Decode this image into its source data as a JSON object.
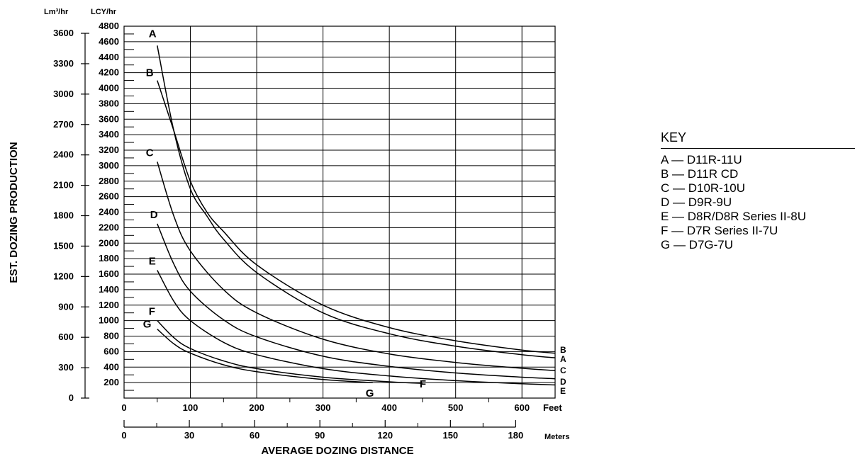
{
  "chart_data": {
    "type": "line",
    "xlabel": "AVERAGE DOZING DISTANCE",
    "ylabel": "EST. DOZING PRODUCTION",
    "x_units": {
      "primary": "Feet",
      "secondary": "Meters"
    },
    "y_units": {
      "primary": "LCY/hr",
      "secondary": "Lm³/hr"
    },
    "xlim": [
      0,
      650
    ],
    "ylim": [
      0,
      4800
    ],
    "x_ticks_feet": [
      "0",
      "100",
      "200",
      "300",
      "400",
      "500",
      "600"
    ],
    "x_ticks_meters": [
      "0",
      "30",
      "60",
      "90",
      "120",
      "150",
      "180"
    ],
    "y_ticks_lcy": [
      "200",
      "400",
      "600",
      "800",
      "1000",
      "1200",
      "1400",
      "1600",
      "1800",
      "2000",
      "2200",
      "2400",
      "2600",
      "2800",
      "3000",
      "3200",
      "3400",
      "3600",
      "3800",
      "4000",
      "4200",
      "4400",
      "4600",
      "4800"
    ],
    "y_ticks_lm3": [
      "0",
      "300",
      "600",
      "900",
      "1200",
      "1500",
      "1800",
      "2100",
      "2400",
      "2700",
      "3000",
      "3300",
      "3600"
    ],
    "grid": true,
    "series": [
      {
        "name": "A",
        "x": [
          50,
          75,
          100,
          125,
          150,
          200,
          300,
          400,
          500,
          600,
          650
        ],
        "y": [
          4550,
          3450,
          2700,
          2350,
          2050,
          1620,
          1100,
          830,
          670,
          560,
          520
        ]
      },
      {
        "name": "B",
        "x": [
          50,
          75,
          100,
          125,
          150,
          200,
          300,
          400,
          500,
          600,
          650
        ],
        "y": [
          4100,
          3450,
          2800,
          2400,
          2150,
          1720,
          1200,
          910,
          740,
          620,
          580
        ]
      },
      {
        "name": "C",
        "x": [
          50,
          75,
          100,
          150,
          200,
          300,
          400,
          500,
          600,
          650
        ],
        "y": [
          3050,
          2350,
          1900,
          1400,
          1100,
          760,
          570,
          460,
          385,
          355
        ]
      },
      {
        "name": "D",
        "x": [
          50,
          75,
          100,
          150,
          200,
          300,
          400,
          500,
          600,
          650
        ],
        "y": [
          2250,
          1730,
          1380,
          1010,
          790,
          540,
          410,
          325,
          270,
          250
        ]
      },
      {
        "name": "E",
        "x": [
          50,
          75,
          100,
          150,
          200,
          300,
          400,
          500,
          600,
          650
        ],
        "y": [
          1650,
          1250,
          1000,
          720,
          560,
          380,
          285,
          225,
          185,
          170
        ]
      },
      {
        "name": "F",
        "x": [
          50,
          75,
          100,
          150,
          200,
          300,
          400,
          450
        ],
        "y": [
          1000,
          780,
          640,
          480,
          380,
          270,
          210,
          190
        ]
      },
      {
        "name": "G",
        "x": [
          50,
          75,
          100,
          150,
          200,
          300,
          375
        ],
        "y": [
          890,
          700,
          580,
          430,
          340,
          240,
          200
        ]
      }
    ],
    "end_labels": [
      "B",
      "A",
      "C",
      "D",
      "E"
    ],
    "legend": {
      "title": "KEY",
      "position": "right",
      "entries": [
        "A — D11R-11U",
        "B — D11R CD",
        "C — D10R-10U",
        "D — D9R-9U",
        "E — D8R/D8R Series II-8U",
        "F — D7R Series II-7U",
        "G — D7G-7U"
      ]
    }
  }
}
